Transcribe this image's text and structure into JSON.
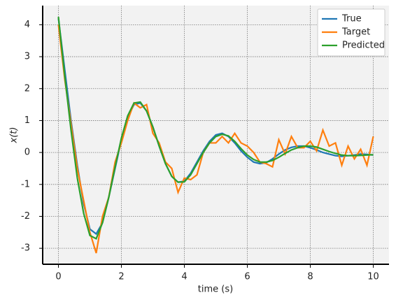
{
  "chart_data": {
    "type": "line",
    "xlabel": "time (s)",
    "ylabel": "x(t)",
    "x": [
      0,
      0.2,
      0.4,
      0.6,
      0.8,
      1.0,
      1.2,
      1.4,
      1.6,
      1.8,
      2.0,
      2.2,
      2.4,
      2.6,
      2.8,
      3.0,
      3.2,
      3.4,
      3.6,
      3.8,
      4.0,
      4.2,
      4.4,
      4.6,
      4.8,
      5.0,
      5.2,
      5.4,
      5.6,
      5.8,
      6.0,
      6.2,
      6.4,
      6.6,
      6.8,
      7.0,
      7.2,
      7.4,
      7.6,
      7.8,
      8.0,
      8.2,
      8.4,
      8.6,
      8.8,
      9.0,
      9.2,
      9.4,
      9.6,
      9.8,
      10.0
    ],
    "series": [
      {
        "name": "True",
        "color": "#1f77b4",
        "values": [
          4.2,
          2.6,
          1.0,
          -0.4,
          -1.6,
          -2.4,
          -2.55,
          -2.2,
          -1.4,
          -0.5,
          0.4,
          1.1,
          1.5,
          1.55,
          1.3,
          0.8,
          0.2,
          -0.35,
          -0.75,
          -0.93,
          -0.9,
          -0.65,
          -0.3,
          0.05,
          0.35,
          0.55,
          0.6,
          0.5,
          0.3,
          0.05,
          -0.15,
          -0.3,
          -0.35,
          -0.32,
          -0.2,
          -0.05,
          0.08,
          0.16,
          0.2,
          0.2,
          0.15,
          0.08,
          0.0,
          -0.05,
          -0.1,
          -0.12,
          -0.1,
          -0.08,
          -0.05,
          -0.06,
          -0.08
        ]
      },
      {
        "name": "Target",
        "color": "#ff7f0e",
        "values": [
          4.0,
          2.3,
          0.9,
          -0.5,
          -1.5,
          -2.5,
          -3.15,
          -2.0,
          -1.4,
          -0.3,
          0.3,
          1.0,
          1.55,
          1.4,
          1.5,
          0.6,
          0.3,
          -0.3,
          -0.5,
          -1.25,
          -0.8,
          -0.85,
          -0.7,
          0.0,
          0.3,
          0.3,
          0.5,
          0.3,
          0.6,
          0.3,
          0.2,
          0.0,
          -0.3,
          -0.35,
          -0.45,
          0.4,
          -0.05,
          0.5,
          0.15,
          0.15,
          0.35,
          0.05,
          0.7,
          0.2,
          0.3,
          -0.4,
          0.2,
          -0.2,
          0.1,
          -0.4,
          0.5
        ]
      },
      {
        "name": "Predicted",
        "color": "#2ca02c",
        "values": [
          4.25,
          2.4,
          0.7,
          -0.8,
          -1.9,
          -2.6,
          -2.7,
          -2.2,
          -1.4,
          -0.45,
          0.45,
          1.15,
          1.55,
          1.58,
          1.3,
          0.8,
          0.2,
          -0.35,
          -0.75,
          -0.93,
          -0.92,
          -0.7,
          -0.35,
          0.0,
          0.3,
          0.5,
          0.57,
          0.52,
          0.35,
          0.12,
          -0.08,
          -0.22,
          -0.3,
          -0.3,
          -0.25,
          -0.15,
          -0.03,
          0.08,
          0.15,
          0.2,
          0.2,
          0.17,
          0.1,
          0.03,
          -0.03,
          -0.08,
          -0.1,
          -0.1,
          -0.09,
          -0.08,
          -0.07
        ]
      }
    ],
    "xlim": [
      -0.5,
      10.5
    ],
    "ylim": [
      -3.5,
      4.6
    ],
    "xticks": [
      0,
      2,
      4,
      6,
      8,
      10
    ],
    "yticks": [
      -3,
      -2,
      -1,
      0,
      1,
      2,
      3,
      4
    ],
    "grid": true,
    "legend": "upper right"
  }
}
